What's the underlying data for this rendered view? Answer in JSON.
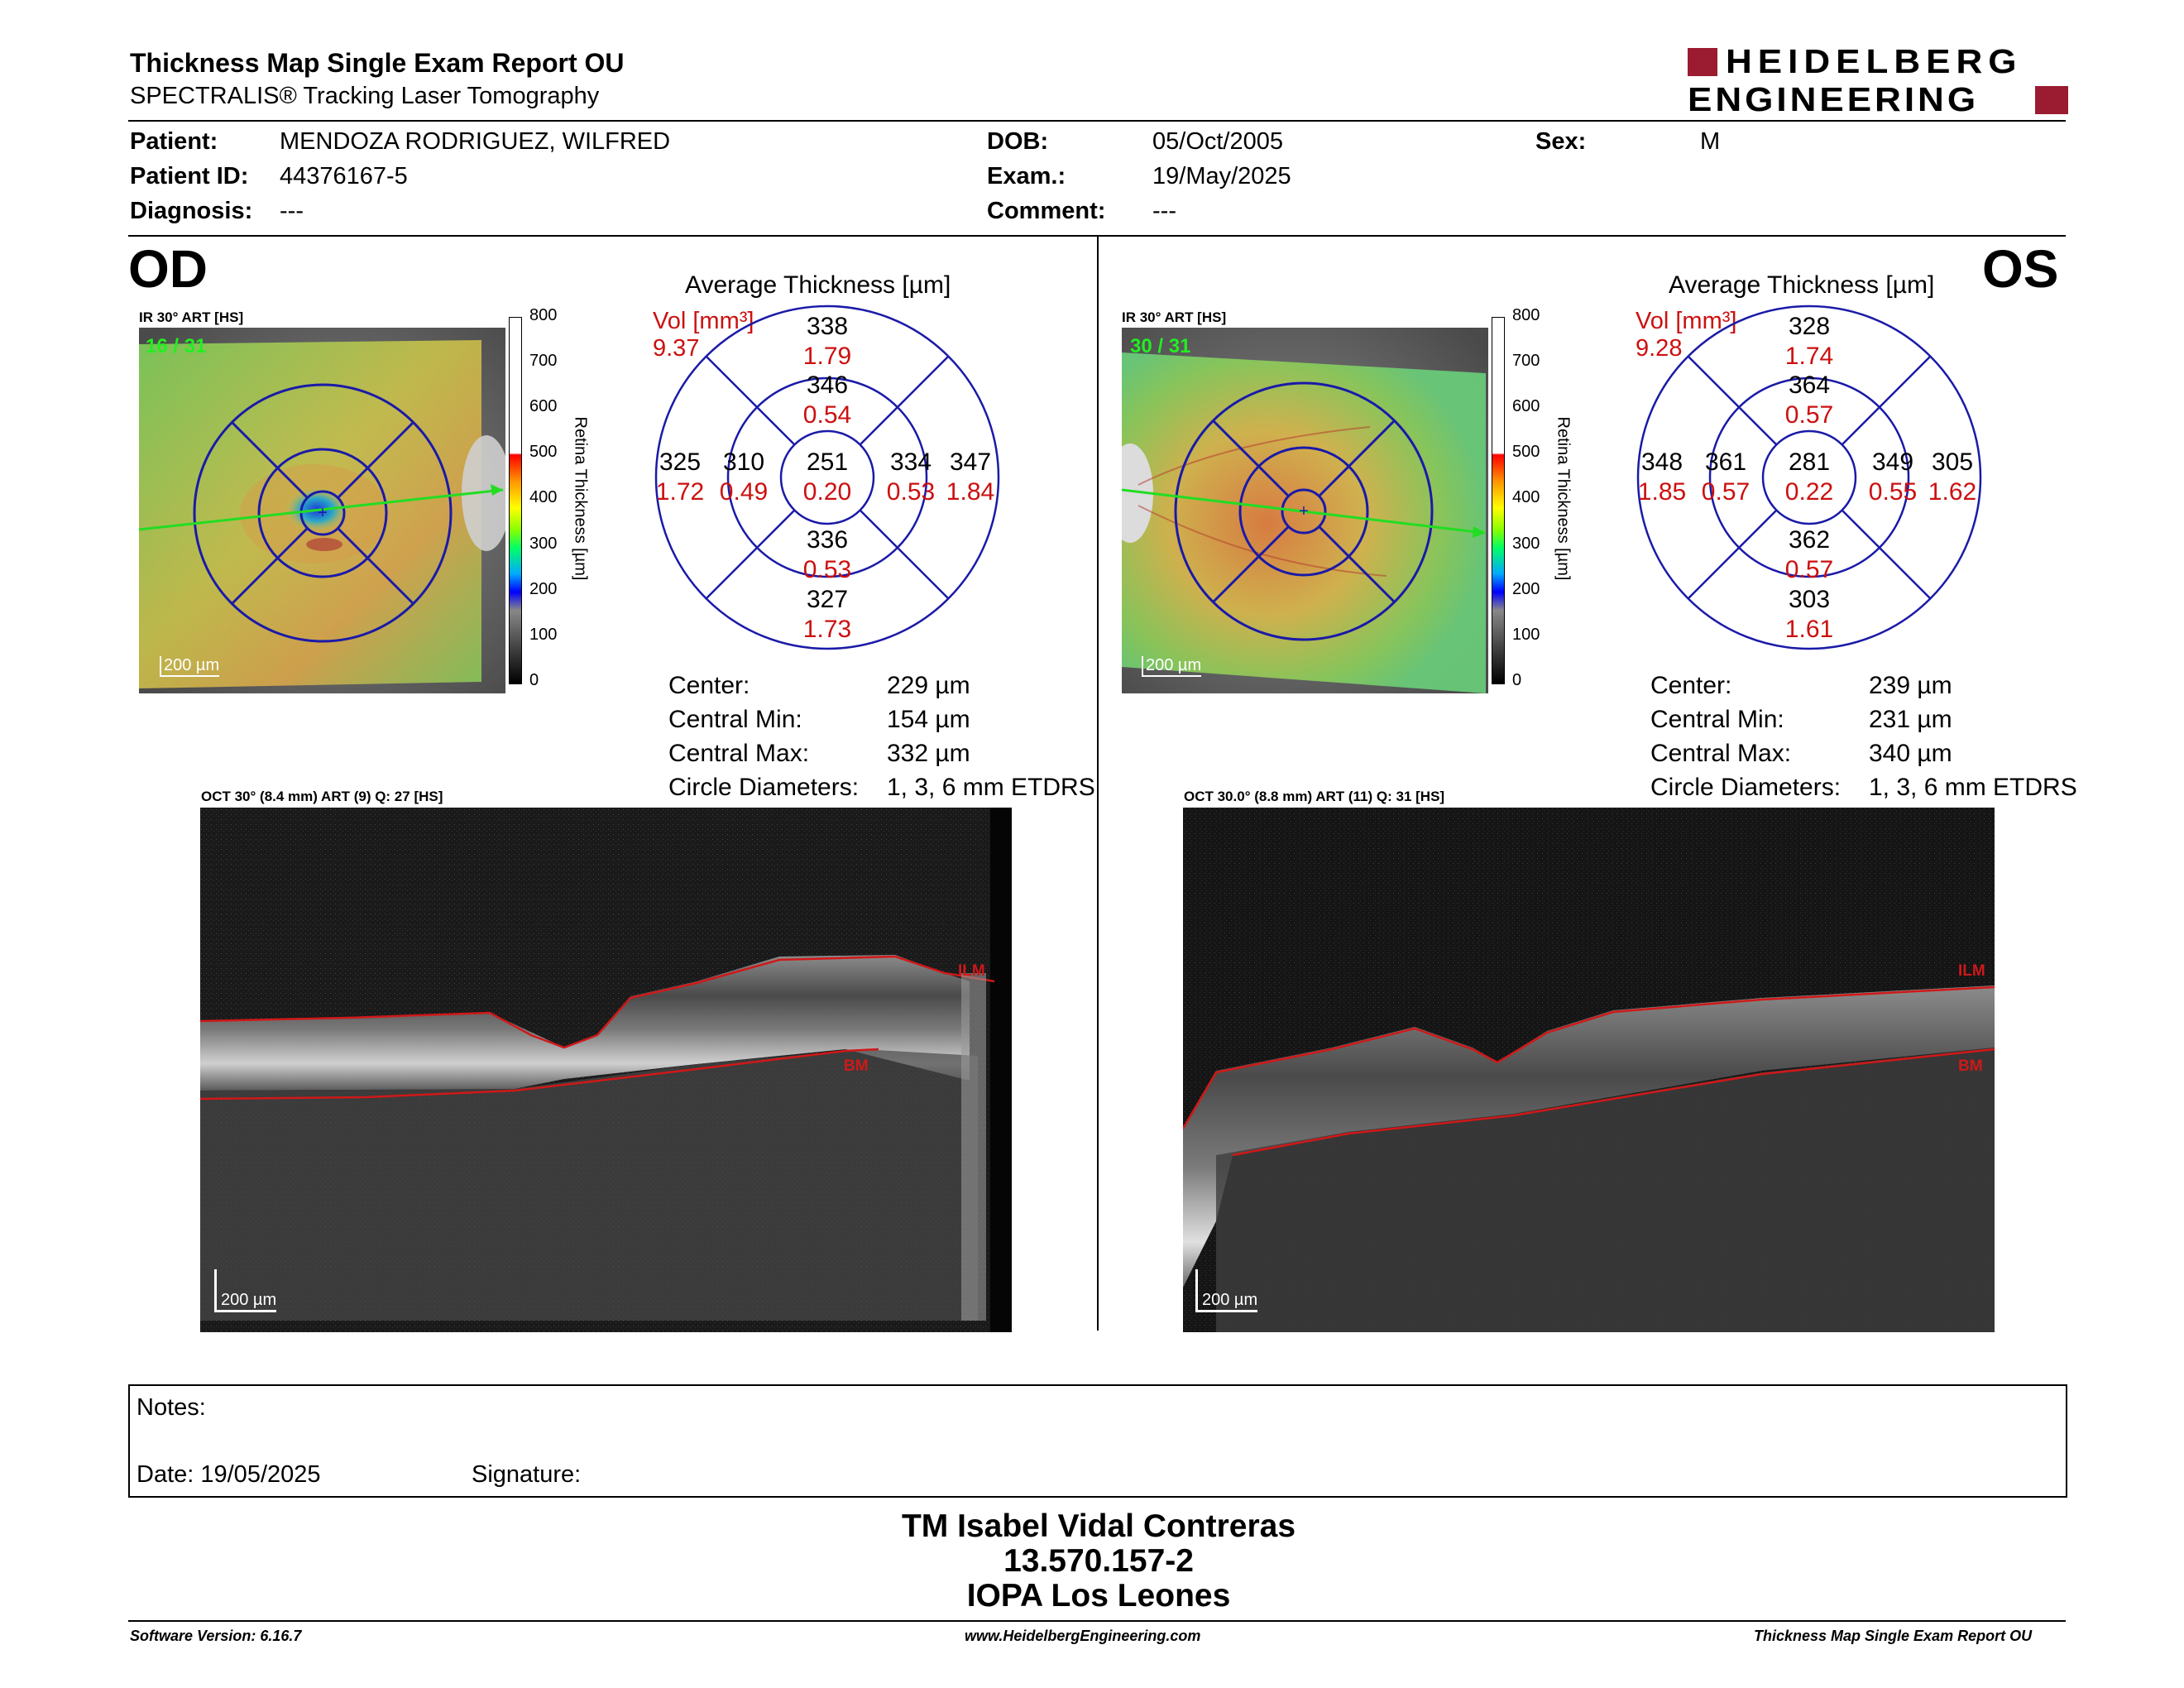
{
  "header": {
    "title": "Thickness Map Single Exam Report OU",
    "subtitle": "SPECTRALIS® Tracking Laser Tomography",
    "logo_line1": "HEIDELBERG",
    "logo_line2": "ENGINEERING"
  },
  "patient": {
    "patient_label": "Patient:",
    "patient_value": "MENDOZA RODRIGUEZ, WILFRED",
    "id_label": "Patient ID:",
    "id_value": "44376167-5",
    "diagnosis_label": "Diagnosis:",
    "diagnosis_value": "---",
    "dob_label": "DOB:",
    "dob_value": "05/Oct/2005",
    "exam_label": "Exam.:",
    "exam_value": "19/May/2025",
    "comment_label": "Comment:",
    "comment_value": "---",
    "sex_label": "Sex:",
    "sex_value": "M"
  },
  "colors": {
    "volume_red": "#cc1010",
    "grid_blue": "#1a1aa8",
    "logo_red": "#9b1b30",
    "scan_line_green": "#22dd22",
    "segmentation_red": "#d01818"
  },
  "scale": {
    "ticks": [
      "800",
      "700",
      "600",
      "500",
      "400",
      "300",
      "200",
      "100",
      "0"
    ],
    "label": "Retina Thickness [µm]"
  },
  "od": {
    "eye_label": "OD",
    "ir_label": "IR 30° ART [HS]",
    "frame_counter": "16 / 31",
    "scale_bar": "200 µm",
    "avg_title": "Average Thickness [µm]",
    "vol_label": "Vol [mm³]",
    "vol_total": "9.37",
    "sectors": {
      "outer_sup": {
        "t": "338",
        "v": "1.79"
      },
      "inner_sup": {
        "t": "346",
        "v": "0.54"
      },
      "outer_temp": {
        "t": "325",
        "v": "1.72"
      },
      "inner_temp": {
        "t": "310",
        "v": "0.49"
      },
      "center": {
        "t": "251",
        "v": "0.20"
      },
      "inner_nas": {
        "t": "334",
        "v": "0.53"
      },
      "outer_nas": {
        "t": "347",
        "v": "1.84"
      },
      "inner_inf": {
        "t": "336",
        "v": "0.53"
      },
      "outer_inf": {
        "t": "327",
        "v": "1.73"
      }
    },
    "stats": {
      "center_label": "Center:",
      "center_value": "229 µm",
      "min_label": "Central Min:",
      "min_value": "154 µm",
      "max_label": "Central Max:",
      "max_value": "332 µm",
      "circ_label": "Circle Diameters:",
      "circ_value": "1, 3, 6 mm ETDRS"
    },
    "oct_label": "OCT 30° (8.4 mm) ART (9) Q: 27 [HS]",
    "oct_scale": "200 µm",
    "ilm": "ILM",
    "bm": "BM"
  },
  "os": {
    "eye_label": "OS",
    "ir_label": "IR 30° ART [HS]",
    "frame_counter": "30 / 31",
    "scale_bar": "200 µm",
    "avg_title": "Average Thickness [µm]",
    "vol_label": "Vol [mm³]",
    "vol_total": "9.28",
    "sectors": {
      "outer_sup": {
        "t": "328",
        "v": "1.74"
      },
      "inner_sup": {
        "t": "364",
        "v": "0.57"
      },
      "outer_temp": {
        "t": "348",
        "v": "1.85"
      },
      "inner_temp": {
        "t": "361",
        "v": "0.57"
      },
      "center": {
        "t": "281",
        "v": "0.22"
      },
      "inner_nas": {
        "t": "349",
        "v": "0.55"
      },
      "outer_nas": {
        "t": "305",
        "v": "1.62"
      },
      "inner_inf": {
        "t": "362",
        "v": "0.57"
      },
      "outer_inf": {
        "t": "303",
        "v": "1.61"
      }
    },
    "stats": {
      "center_label": "Center:",
      "center_value": "239 µm",
      "min_label": "Central Min:",
      "min_value": "231 µm",
      "max_label": "Central Max:",
      "max_value": "340 µm",
      "circ_label": "Circle Diameters:",
      "circ_value": "1, 3, 6 mm ETDRS"
    },
    "oct_label": "OCT 30.0° (8.8 mm) ART (11) Q: 31 [HS]",
    "oct_scale": "200 µm",
    "ilm": "ILM",
    "bm": "BM"
  },
  "notes": {
    "notes_label": "Notes:",
    "date_label": "Date: 19/05/2025",
    "signature_label": "Signature:"
  },
  "signature_block": {
    "name": "TM Isabel Vidal Contreras",
    "id": "13.570.157-2",
    "clinic": "IOPA Los Leones"
  },
  "footer": {
    "software": "Software Version: 6.16.7",
    "website": "www.HeidelbergEngineering.com",
    "report": "Thickness Map Single Exam Report OU"
  }
}
